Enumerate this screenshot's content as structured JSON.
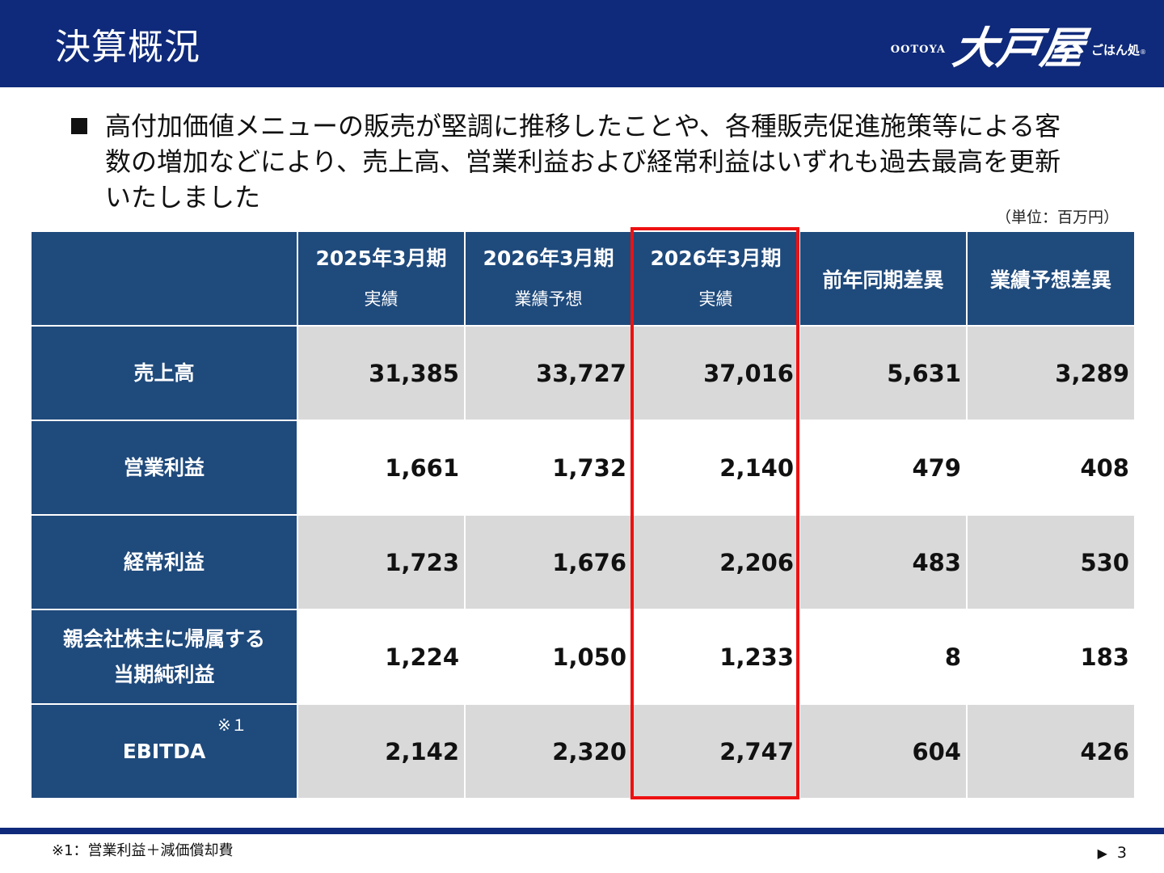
{
  "header": {
    "title": "決算概況",
    "logo": {
      "en": "OOTOYA",
      "main": "大戸屋",
      "sub": "ごはん処",
      "mark": "®"
    }
  },
  "summary": {
    "text": "高付加価値メニューの販売が堅調に推移したことや、各種販売促進施策等による客数の増加などにより、売上高、営業利益および経常利益はいずれも過去最高を更新いたしました"
  },
  "unit_label": "（単位：百万円）",
  "table": {
    "columns": [
      {
        "year": "2025年3月期",
        "sub": "実績"
      },
      {
        "year": "2026年3月期",
        "sub": "業績予想"
      },
      {
        "year": "2026年3月期",
        "sub": "実績"
      },
      {
        "year": "前年同期差異",
        "sub": ""
      },
      {
        "year": "業績予想差異",
        "sub": ""
      }
    ],
    "rows": [
      {
        "label": "売上高",
        "label2": "",
        "note": "",
        "values": [
          "31,385",
          "33,727",
          "37,016",
          "5,631",
          "3,289"
        ]
      },
      {
        "label": "営業利益",
        "label2": "",
        "note": "",
        "values": [
          "1,661",
          "1,732",
          "2,140",
          "479",
          "408"
        ]
      },
      {
        "label": "経常利益",
        "label2": "",
        "note": "",
        "values": [
          "1,723",
          "1,676",
          "2,206",
          "483",
          "530"
        ]
      },
      {
        "label": "親会社株主に帰属する",
        "label2": "当期純利益",
        "note": "",
        "values": [
          "1,224",
          "1,050",
          "1,233",
          "8",
          "183"
        ]
      },
      {
        "label": "EBITDA",
        "label2": "",
        "note": "※１",
        "values": [
          "2,142",
          "2,320",
          "2,747",
          "604",
          "426"
        ]
      }
    ]
  },
  "footnote": "※1：営業利益＋減価償却費",
  "page": {
    "arrow": "▶",
    "number": "3"
  },
  "colors": {
    "header_bg": "#0f2a7a",
    "table_header_bg": "#1f4a7c",
    "row_shade": "#d9d9d9",
    "highlight": "#ee1111"
  }
}
